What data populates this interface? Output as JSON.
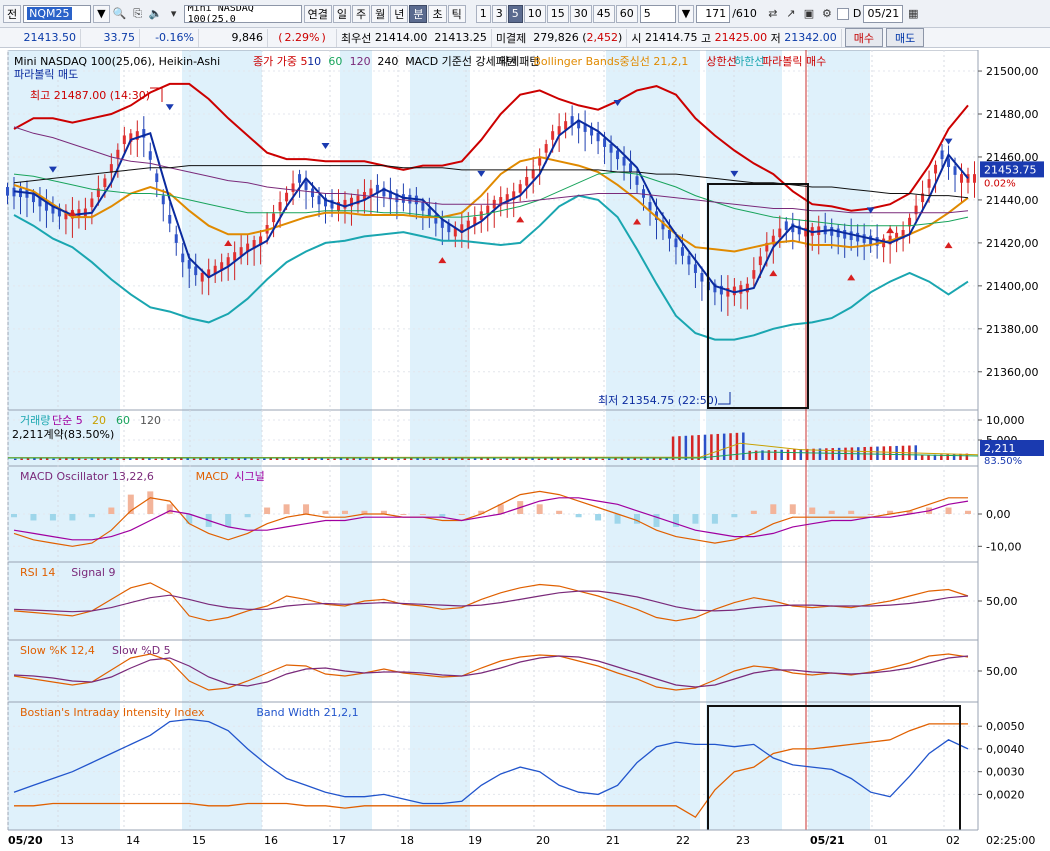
{
  "toolbar": {
    "prev_label": "전",
    "code": "NQM25",
    "name": "Mini NASDAQ 100(25.0",
    "period_tabs": [
      "연결",
      "일",
      "주",
      "월",
      "년",
      "분",
      "초",
      "틱"
    ],
    "active_period": "분",
    "intervals": [
      "1",
      "3",
      "5",
      "10",
      "15",
      "30",
      "45",
      "60"
    ],
    "active_interval": "5",
    "interval_select": "5",
    "count": "171",
    "total": "/610",
    "date": "05/21"
  },
  "quote": {
    "price": "21413.50",
    "change": "33.75",
    "change_pct": "-0.16%",
    "volume": "9,846",
    "volume_pct": "2.29%",
    "best_bid_label": "최우선",
    "best_bid": "21414.00",
    "best_ask": "21413.25",
    "open_interest_label": "미결제",
    "open_interest": "279,826",
    "oi_change": "2,452",
    "open_label": "시",
    "open": "21414.75",
    "high_label": "고",
    "high": "21425.00",
    "low_label": "저",
    "low": "21342.00",
    "buy_label": "매수",
    "sell_label": "매도"
  },
  "legends": {
    "main": [
      {
        "text": "Mini NASDAQ 100(25,06), Heikin-Ashi",
        "color": "#000000"
      },
      {
        "text": "종가 가중 5",
        "color": "#cc0000"
      },
      {
        "text": "10",
        "color": "#0a2a9e"
      },
      {
        "text": "60",
        "color": "#19a45c"
      },
      {
        "text": "120",
        "color": "#7a2a7a"
      },
      {
        "text": "240",
        "color": "#000000"
      },
      {
        "text": "MACD 기준선 강세패턴",
        "color": "#000000"
      },
      {
        "text": "약세패턴",
        "color": "#000000"
      },
      {
        "text": "Bollinger Bands중심선 21,2,1",
        "color": "#e08a00"
      },
      {
        "text": "상한선",
        "color": "#cc0000"
      },
      {
        "text": "하한선",
        "color": "#1aa6b0"
      },
      {
        "text": "파라볼릭 매수",
        "color": "#cc0000"
      }
    ],
    "main_line2": {
      "text": "파라볼릭 매도",
      "color": "#0a2a9e"
    },
    "volume": [
      {
        "text": "거래량",
        "color": "#1aa6b0"
      },
      {
        "text": "단순 5",
        "color": "#a000a0"
      },
      {
        "text": "20",
        "color": "#c8a000"
      },
      {
        "text": "60",
        "color": "#19a45c"
      },
      {
        "text": "120",
        "color": "#555555"
      }
    ],
    "volume_sub": "2,211계약(83.50%)",
    "macd": [
      {
        "text": "MACD Oscillator 13,22,6",
        "color": "#7a2a7a"
      },
      {
        "text": "MACD",
        "color": "#e06000"
      },
      {
        "text": "시그널",
        "color": "#a000a0"
      }
    ],
    "rsi": [
      {
        "text": "RSI 14",
        "color": "#e06000"
      },
      {
        "text": "Signal 9",
        "color": "#7a2a7a"
      }
    ],
    "stoch": [
      {
        "text": "Slow %K 12,4",
        "color": "#e06000"
      },
      {
        "text": "Slow %D 5",
        "color": "#7a2a7a"
      }
    ],
    "bii": [
      {
        "text": "Bostian's Intraday Intensity Index",
        "color": "#e06000"
      },
      {
        "text": "Band Width 21,2,1",
        "color": "#2255cc"
      }
    ]
  },
  "annotations": {
    "high": "최고 21487.00 (14:30)",
    "low": "최저 21354.75 (22:50)",
    "price_tag": "21453.75",
    "price_tag_pct": "0.02%",
    "vol_tag": "2,211",
    "vol_tag_pct": "83.50%",
    "time_label": "02:25:00"
  },
  "chart_data": {
    "type": "line",
    "main_panel": {
      "y_ticks": [
        21500,
        21480,
        21460,
        21440,
        21420,
        21400,
        21380,
        21360
      ],
      "ylim": [
        21345,
        21507
      ],
      "series": [
        {
          "name": "상한선",
          "color": "#cc0000",
          "values": [
            21473,
            21478,
            21478,
            21476,
            21478,
            21480,
            21484,
            21490,
            21494,
            21494,
            21487,
            21478,
            21470,
            21462,
            21459,
            21459,
            21458,
            21458,
            21458,
            21456,
            21454,
            21456,
            21456,
            21458,
            21468,
            21480,
            21489,
            21491,
            21487,
            21484,
            21482,
            21486,
            21491,
            21493,
            21489,
            21478,
            21470,
            21463,
            21457,
            21452,
            21444,
            21438,
            21437,
            21435,
            21436,
            21438,
            21443,
            21456,
            21473,
            21484
          ]
        },
        {
          "name": "중심선",
          "color": "#e08a00",
          "values": [
            21447,
            21444,
            21438,
            21432,
            21432,
            21437,
            21443,
            21446,
            21443,
            21435,
            21428,
            21424,
            21424,
            21426,
            21429,
            21432,
            21434,
            21434,
            21433,
            21433,
            21433,
            21432,
            21432,
            21434,
            21442,
            21452,
            21458,
            21460,
            21458,
            21456,
            21453,
            21447,
            21440,
            21432,
            21424,
            21418,
            21417,
            21416,
            21418,
            21420,
            21421,
            21419,
            21419,
            21418,
            21419,
            21421,
            21424,
            21428,
            21434,
            21441
          ]
        },
        {
          "name": "하한선",
          "color": "#1aa6b0",
          "values": [
            21433,
            21428,
            21422,
            21418,
            21411,
            21403,
            21396,
            21390,
            21388,
            21385,
            21383,
            21387,
            21394,
            21403,
            21411,
            21416,
            21420,
            21421,
            21423,
            21424,
            21425,
            21423,
            21421,
            21421,
            21420,
            21419,
            21420,
            21428,
            21437,
            21442,
            21440,
            21432,
            21417,
            21401,
            21386,
            21378,
            21375,
            21375,
            21377,
            21380,
            21382,
            21383,
            21385,
            21390,
            21397,
            21402,
            21406,
            21402,
            21396,
            21402
          ]
        },
        {
          "name": "10",
          "color": "#0a2a9e",
          "values": [
            21444,
            21443,
            21437,
            21433,
            21434,
            21448,
            21468,
            21471,
            21440,
            21413,
            21404,
            21409,
            21416,
            21421,
            21437,
            21450,
            21440,
            21437,
            21440,
            21445,
            21441,
            21440,
            21431,
            21425,
            21430,
            21438,
            21442,
            21452,
            21470,
            21477,
            21472,
            21464,
            21455,
            21437,
            21424,
            21412,
            21400,
            21397,
            21399,
            21418,
            21428,
            21425,
            21426,
            21424,
            21422,
            21420,
            21424,
            21441,
            21461,
            21450
          ]
        },
        {
          "name": "60",
          "color": "#19a45c",
          "values": [
            21452,
            21451,
            21449,
            21447,
            21445,
            21444,
            21443,
            21443,
            21442,
            21440,
            21438,
            21436,
            21434,
            21434,
            21434,
            21434,
            21435,
            21435,
            21435,
            21434,
            21434,
            21433,
            21432,
            21432,
            21433,
            21435,
            21437,
            21440,
            21444,
            21448,
            21452,
            21453,
            21452,
            21449,
            21446,
            21442,
            21439,
            21436,
            21434,
            21432,
            21431,
            21430,
            21429,
            21428,
            21428,
            21428,
            21428,
            21429,
            21430,
            21432
          ]
        },
        {
          "name": "120",
          "color": "#7a2a7a",
          "values": [
            21474,
            21471,
            21469,
            21466,
            21463,
            21460,
            21458,
            21457,
            21455,
            21453,
            21451,
            21449,
            21448,
            21446,
            21445,
            21444,
            21443,
            21443,
            21442,
            21441,
            21440,
            21439,
            21438,
            21438,
            21438,
            21438,
            21439,
            21440,
            21441,
            21442,
            21443,
            21443,
            21443,
            21442,
            21441,
            21440,
            21439,
            21438,
            21437,
            21436,
            21436,
            21435,
            21435,
            21434,
            21434,
            21434,
            21434,
            21434,
            21434,
            21435
          ]
        },
        {
          "name": "240",
          "color": "#111111",
          "values": [
            21448,
            21449,
            21450,
            21451,
            21452,
            21453,
            21454,
            21455,
            21455,
            21456,
            21456,
            21456,
            21456,
            21456,
            21456,
            21456,
            21456,
            21456,
            21456,
            21456,
            21455,
            21455,
            21455,
            21454,
            21454,
            21454,
            21454,
            21454,
            21454,
            21454,
            21454,
            21453,
            21453,
            21452,
            21452,
            21451,
            21450,
            21449,
            21448,
            21448,
            21447,
            21446,
            21446,
            21445,
            21444,
            21443,
            21443,
            21442,
            21442,
            21441
          ]
        }
      ]
    },
    "volume_panel": {
      "y_ticks": [
        10000,
        5000
      ],
      "ylim": [
        0,
        11000
      ]
    },
    "macd_panel": {
      "y_ticks": [
        0,
        -10
      ],
      "ylim": [
        -13,
        13
      ],
      "series": [
        {
          "name": "MACD",
          "color": "#e06000",
          "values": [
            -6,
            -8,
            -9,
            -10,
            -9,
            -5,
            1,
            5,
            4,
            -3,
            -6,
            -8,
            -6,
            -3,
            -1,
            0,
            -1,
            -1,
            0,
            0,
            -1,
            -1,
            -2,
            -2,
            0,
            3,
            6,
            7,
            6,
            4,
            2,
            0,
            -2,
            -5,
            -7,
            -8,
            -9,
            -8,
            -6,
            -3,
            -1,
            -1,
            -1,
            -1,
            -1,
            0,
            1,
            3,
            5,
            5
          ]
        },
        {
          "name": "시그널",
          "color": "#a000a0",
          "values": [
            -5,
            -6,
            -7,
            -8,
            -8,
            -7,
            -5,
            -2,
            1,
            0,
            -2,
            -4,
            -5,
            -5,
            -4,
            -3,
            -2,
            -2,
            -1,
            -1,
            -1,
            -1,
            -1,
            -2,
            -1,
            0,
            2,
            4,
            5,
            5,
            4,
            3,
            1,
            -1,
            -3,
            -5,
            -6,
            -7,
            -7,
            -6,
            -4,
            -3,
            -2,
            -2,
            -1,
            -1,
            0,
            1,
            3,
            4
          ]
        }
      ]
    },
    "rsi_panel": {
      "y_ticks": [
        50
      ],
      "ylim": [
        10,
        90
      ],
      "series": [
        {
          "name": "RSI 14",
          "color": "#e06000",
          "values": [
            38,
            36,
            34,
            32,
            38,
            52,
            66,
            72,
            60,
            32,
            26,
            30,
            38,
            44,
            56,
            52,
            46,
            44,
            50,
            52,
            46,
            44,
            40,
            42,
            52,
            60,
            66,
            70,
            68,
            62,
            56,
            48,
            40,
            30,
            26,
            30,
            40,
            48,
            54,
            50,
            44,
            42,
            44,
            42,
            46,
            50,
            56,
            62,
            64,
            56
          ]
        },
        {
          "name": "Signal 9",
          "color": "#7a2a7a",
          "values": [
            40,
            39,
            38,
            37,
            38,
            42,
            48,
            54,
            57,
            52,
            46,
            42,
            40,
            40,
            44,
            46,
            47,
            46,
            47,
            48,
            47,
            46,
            45,
            44,
            45,
            48,
            52,
            56,
            60,
            62,
            62,
            59,
            55,
            49,
            43,
            39,
            38,
            39,
            42,
            44,
            45,
            45,
            44,
            44,
            44,
            45,
            47,
            50,
            54,
            56
          ]
        }
      ]
    },
    "stoch_panel": {
      "y_ticks": [
        50
      ],
      "ylim": [
        0,
        100
      ],
      "series": [
        {
          "name": "Slow %K 12,4",
          "color": "#e06000",
          "values": [
            40,
            34,
            28,
            22,
            28,
            52,
            76,
            84,
            70,
            30,
            12,
            16,
            30,
            46,
            62,
            60,
            44,
            40,
            46,
            54,
            46,
            42,
            38,
            40,
            56,
            70,
            78,
            82,
            80,
            70,
            60,
            46,
            34,
            18,
            12,
            16,
            32,
            50,
            60,
            56,
            46,
            42,
            46,
            42,
            48,
            56,
            66,
            80,
            84,
            78
          ]
        },
        {
          "name": "Slow %D 5",
          "color": "#7a2a7a",
          "values": [
            42,
            40,
            36,
            30,
            28,
            38,
            56,
            72,
            76,
            60,
            38,
            24,
            20,
            28,
            44,
            54,
            56,
            50,
            46,
            48,
            48,
            46,
            42,
            40,
            46,
            56,
            68,
            76,
            80,
            78,
            70,
            58,
            46,
            34,
            22,
            18,
            22,
            34,
            46,
            52,
            52,
            48,
            46,
            44,
            46,
            50,
            56,
            66,
            76,
            80
          ]
        }
      ]
    },
    "bii_panel": {
      "y_ticks": [
        0.005,
        0.004,
        0.003,
        0.002
      ],
      "ylim": [
        0.0007,
        0.0058
      ],
      "series": [
        {
          "name": "Bostian's Intraday Intensity Index",
          "color": "#e06000",
          "values": [
            0.0015,
            0.0015,
            0.0016,
            0.0016,
            0.0016,
            0.0016,
            0.0016,
            0.0016,
            0.0016,
            0.0016,
            0.0015,
            0.0015,
            0.0016,
            0.0016,
            0.0016,
            0.0015,
            0.0015,
            0.0014,
            0.0015,
            0.0015,
            0.0015,
            0.0015,
            0.0015,
            0.0015,
            0.0015,
            0.0015,
            0.0015,
            0.0015,
            0.0015,
            0.0015,
            0.0015,
            0.0015,
            0.0015,
            0.0015,
            0.0015,
            0.001,
            0.0022,
            0.003,
            0.0032,
            0.0038,
            0.004,
            0.004,
            0.0041,
            0.0042,
            0.0043,
            0.0044,
            0.0048,
            0.0051,
            0.0051,
            0.0051
          ]
        },
        {
          "name": "Band Width 21,2,1",
          "color": "#2255cc",
          "values": [
            0.0021,
            0.0024,
            0.0027,
            0.003,
            0.0034,
            0.0038,
            0.0042,
            0.0046,
            0.0052,
            0.0053,
            0.0052,
            0.0048,
            0.004,
            0.0033,
            0.0027,
            0.0024,
            0.0021,
            0.0019,
            0.0019,
            0.002,
            0.0018,
            0.0016,
            0.0016,
            0.0017,
            0.0024,
            0.0029,
            0.0032,
            0.003,
            0.0024,
            0.0021,
            0.002,
            0.0024,
            0.0034,
            0.0041,
            0.0043,
            0.0042,
            0.0042,
            0.0041,
            0.0042,
            0.0036,
            0.0033,
            0.0032,
            0.0031,
            0.0027,
            0.0021,
            0.0019,
            0.0028,
            0.0038,
            0.0044,
            0.004
          ]
        }
      ]
    },
    "x_tick_labels": [
      "05/20",
      "13",
      "14",
      "15",
      "16",
      "17",
      "18",
      "19",
      "20",
      "21",
      "22",
      "23",
      "05/21",
      "01",
      "02"
    ],
    "grid": true
  }
}
